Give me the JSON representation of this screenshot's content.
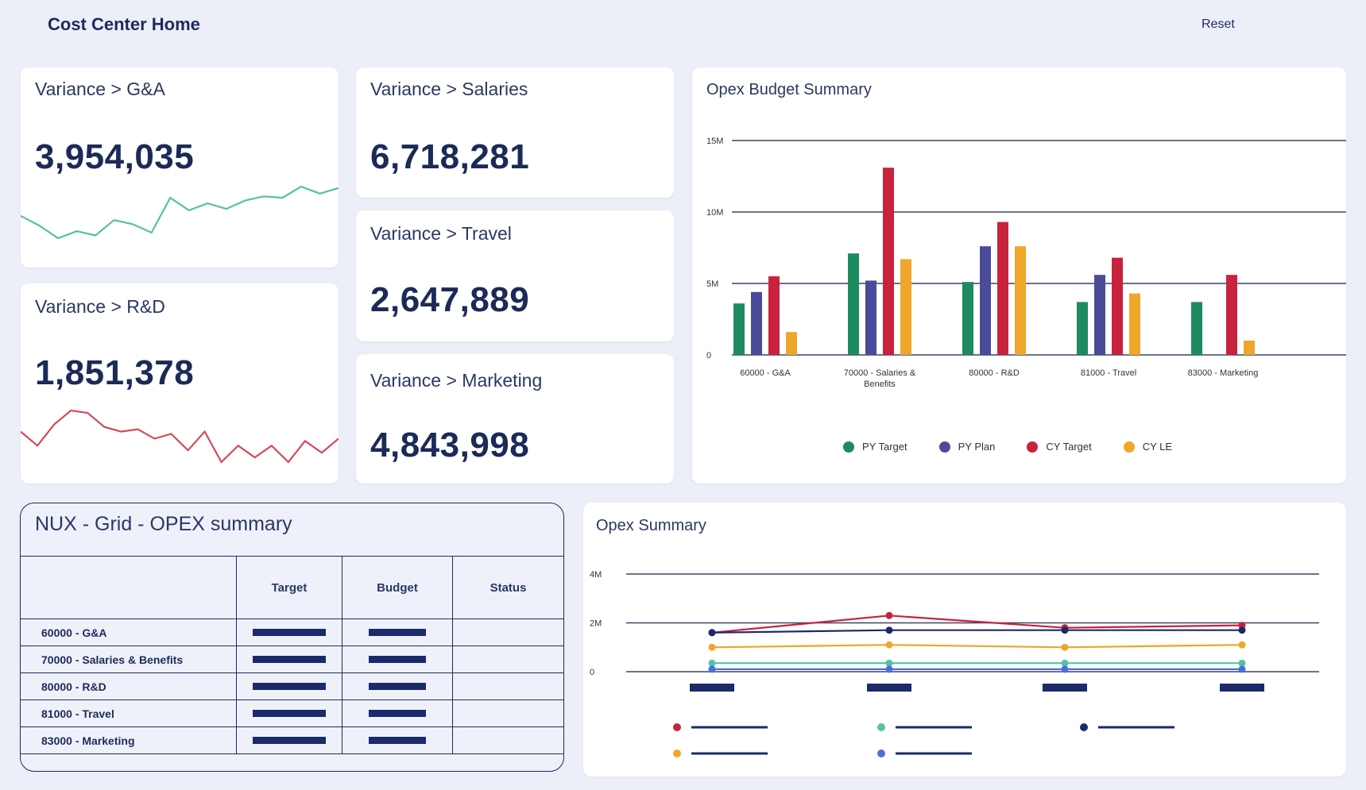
{
  "header": {
    "title": "Cost Center Home",
    "reset_label": "Reset"
  },
  "kpis": {
    "ga": {
      "label": "Variance > G&A",
      "value": "3,954,035"
    },
    "salaries": {
      "label": "Variance > Salaries",
      "value": "6,718,281"
    },
    "travel": {
      "label": "Variance > Travel",
      "value": "2,647,889"
    },
    "rd": {
      "label": "Variance > R&D",
      "value": "1,851,378"
    },
    "marketing": {
      "label": "Variance > Marketing",
      "value": "4,843,998"
    }
  },
  "sparklines": {
    "ga": {
      "color": "#55c1a8",
      "values": [
        5.5,
        4.8,
        3.9,
        4.4,
        4.1,
        5.2,
        4.9,
        4.3,
        6.8,
        5.9,
        6.4,
        6.0,
        6.6,
        6.9,
        6.8,
        7.6,
        7.1,
        7.5
      ]
    },
    "rd": {
      "color": "#d9475a",
      "values": [
        5.2,
        4.6,
        5.5,
        6.1,
        6.0,
        5.4,
        5.2,
        5.3,
        4.9,
        5.1,
        4.4,
        5.2,
        3.9,
        4.6,
        4.1,
        4.6,
        3.9,
        4.8,
        4.3,
        4.9
      ]
    }
  },
  "opex_budget_title": "Opex Budget Summary",
  "opex_summary_title": "Opex Summary",
  "chart_data": [
    {
      "type": "bar",
      "title": "Opex Budget Summary",
      "categories": [
        "60000 - G&A",
        "70000 - Salaries & Benefits",
        "80000 - R&D",
        "81000 - Travel",
        "83000 - Marketing"
      ],
      "category_lines": [
        [
          "60000 - G&A"
        ],
        [
          "70000 - Salaries &",
          "Benefits"
        ],
        [
          "80000 - R&D"
        ],
        [
          "81000 - Travel"
        ],
        [
          "83000 - Marketing"
        ]
      ],
      "series": [
        {
          "name": "PY Target",
          "color": "#1e8a5f",
          "values": [
            3.6,
            7.1,
            5.1,
            3.7,
            3.7
          ]
        },
        {
          "name": "PY Plan",
          "color": "#4c4a9a",
          "values": [
            4.4,
            5.2,
            7.6,
            5.6,
            null
          ]
        },
        {
          "name": "CY Target",
          "color": "#c9223d",
          "values": [
            5.5,
            13.1,
            9.3,
            6.8,
            5.6
          ]
        },
        {
          "name": "CY LE",
          "color": "#efa629",
          "values": [
            1.6,
            6.7,
            7.6,
            4.3,
            1.0
          ]
        }
      ],
      "yticks": [
        "0",
        "5M",
        "10M",
        "15M"
      ],
      "ylim": [
        0,
        15
      ],
      "legend_position": "bottom"
    },
    {
      "type": "line",
      "title": "Opex Summary",
      "x_count": 4,
      "yticks": [
        "0",
        "2M",
        "4M"
      ],
      "ylim": [
        0,
        4
      ],
      "series": [
        {
          "name": "",
          "color": "#c9223d",
          "values": [
            1.6,
            2.3,
            1.8,
            1.9
          ]
        },
        {
          "name": "",
          "color": "#1b2a6b",
          "values": [
            1.6,
            1.7,
            1.7,
            1.7
          ]
        },
        {
          "name": "",
          "color": "#efa629",
          "values": [
            1.0,
            1.1,
            1.0,
            1.1
          ]
        },
        {
          "name": "",
          "color": "#55c1a8",
          "values": [
            0.35,
            0.35,
            0.35,
            0.35
          ]
        },
        {
          "name": "",
          "color": "#4a6fd6",
          "values": [
            0.1,
            0.1,
            0.1,
            0.1
          ]
        }
      ]
    }
  ],
  "grid": {
    "title": "NUX - Grid - OPEX summary",
    "columns": [
      "",
      "Target",
      "Budget",
      "Status"
    ],
    "rows": [
      {
        "name": "60000 - G&A"
      },
      {
        "name": "70000 - Salaries & Benefits"
      },
      {
        "name": "80000 - R&D"
      },
      {
        "name": "81000 - Travel"
      },
      {
        "name": "83000 - Marketing"
      }
    ]
  }
}
